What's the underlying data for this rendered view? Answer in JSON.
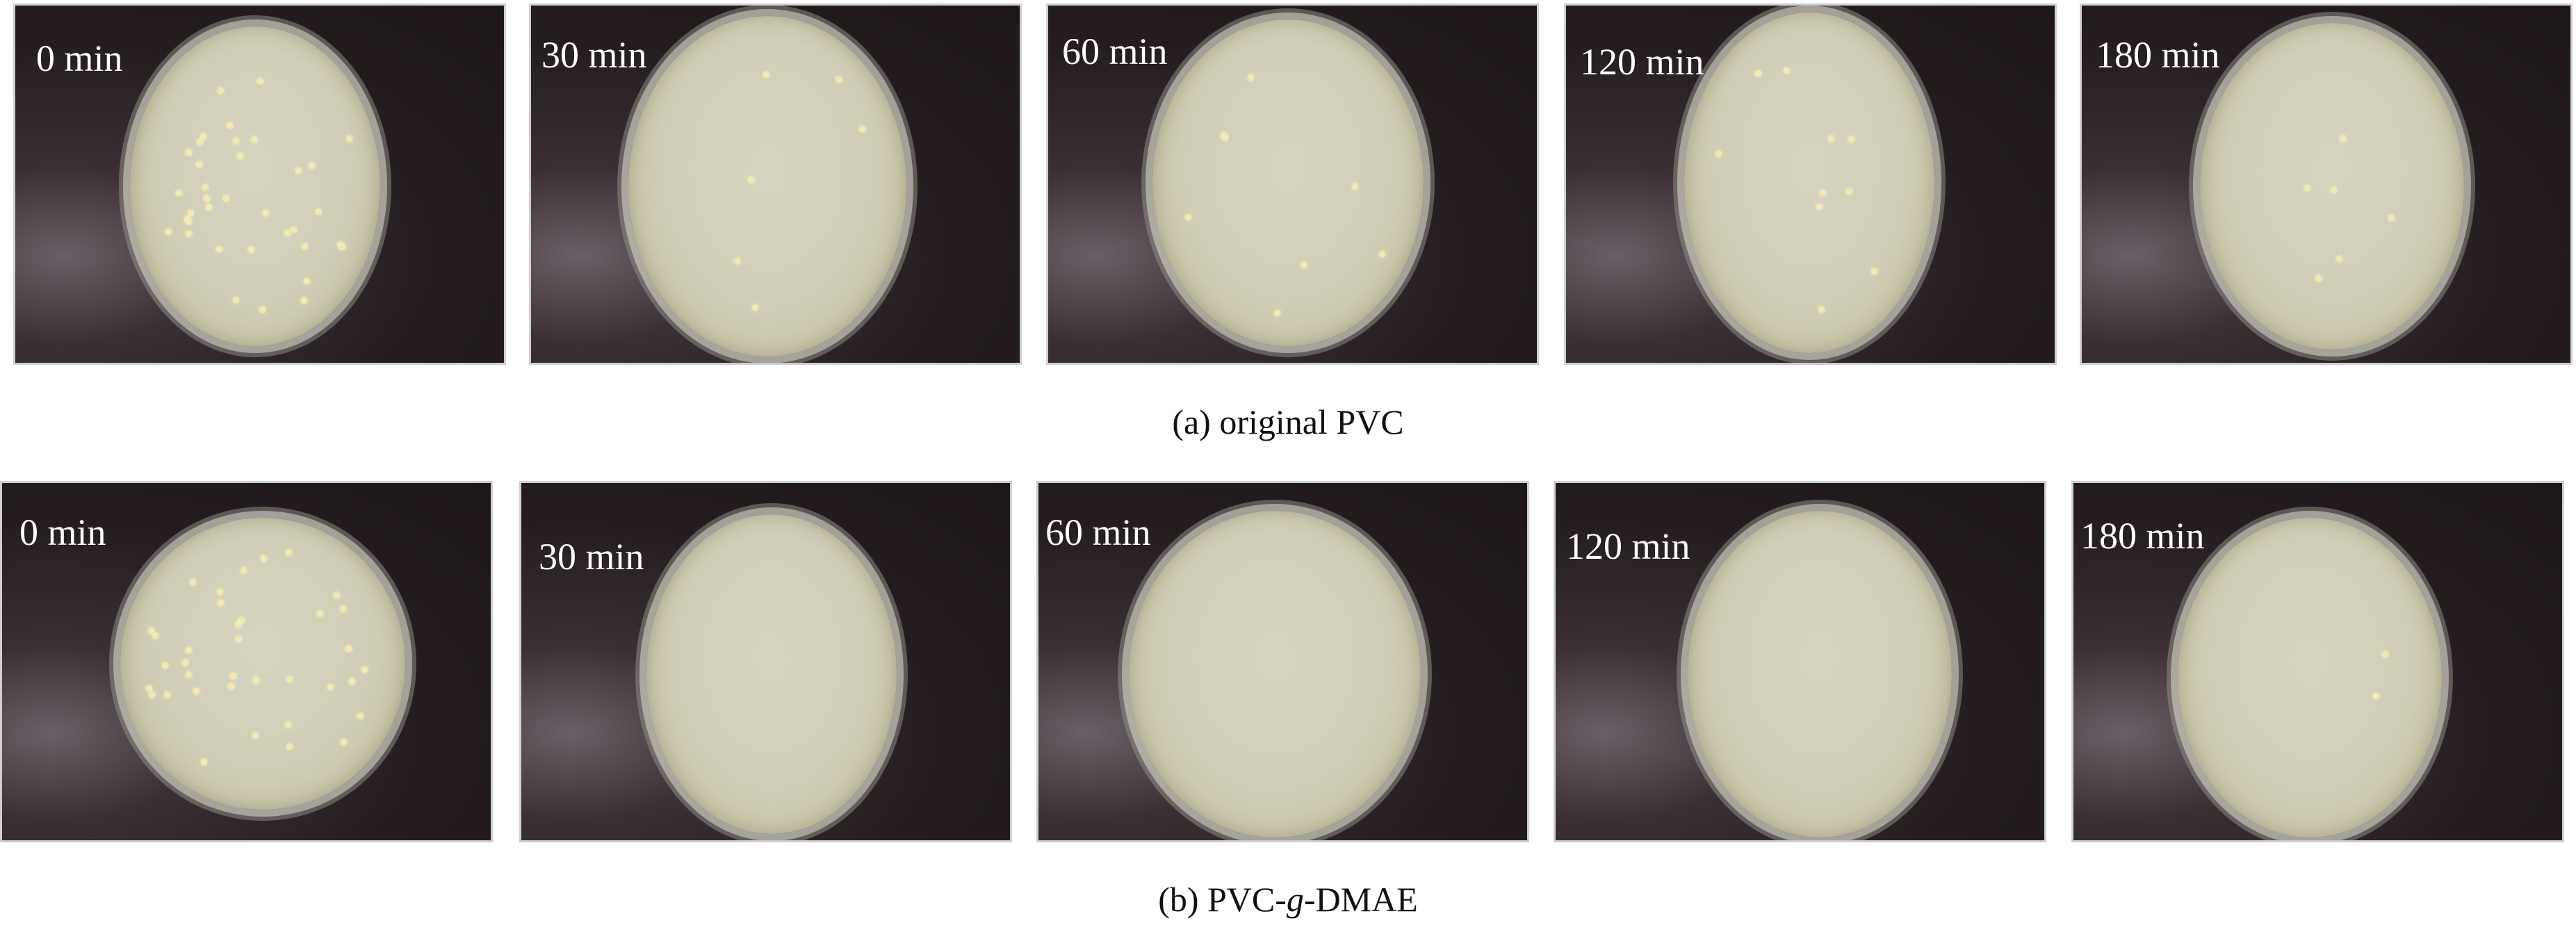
{
  "figure": {
    "rows": [
      {
        "caption_prefix": "(a) ",
        "caption": "original PVC",
        "panels": [
          {
            "label": "0 min"
          },
          {
            "label": "30 min"
          },
          {
            "label": "60 min"
          },
          {
            "label": "120 min"
          },
          {
            "label": "180 min"
          }
        ]
      },
      {
        "caption_prefix": "(b) PVC-",
        "caption_italic": "g",
        "caption_suffix": "-DMAE",
        "panels": [
          {
            "label": "0 min"
          },
          {
            "label": "30 min"
          },
          {
            "label": "60 min"
          },
          {
            "label": "120 min"
          },
          {
            "label": "180 min"
          }
        ]
      }
    ]
  }
}
